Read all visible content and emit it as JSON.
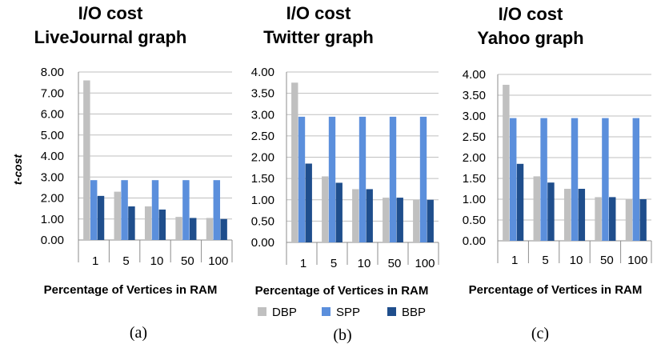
{
  "figure": {
    "legend": [
      {
        "name": "DBP",
        "color": "#c0c0c0"
      },
      {
        "name": "SPP",
        "color": "#5b8fdc"
      },
      {
        "name": "BBP",
        "color": "#1f4e8c"
      }
    ]
  },
  "chart_data": [
    {
      "type": "bar",
      "title_lines": [
        "I/O cost",
        "LiveJournal graph"
      ],
      "caption": "(a)",
      "xlabel": "Percentage of Vertices in RAM",
      "ylabel": "t-cost",
      "categories": [
        "1",
        "5",
        "10",
        "50",
        "100"
      ],
      "ylim": [
        0,
        8
      ],
      "yticks": [
        "0.00",
        "1.00",
        "2.00",
        "3.00",
        "4.00",
        "5.00",
        "6.00",
        "7.00",
        "8.00"
      ],
      "series": [
        {
          "name": "DBP",
          "values": [
            7.6,
            2.3,
            1.6,
            1.1,
            1.05
          ]
        },
        {
          "name": "SPP",
          "values": [
            2.85,
            2.85,
            2.85,
            2.85,
            2.85
          ]
        },
        {
          "name": "BBP",
          "values": [
            2.1,
            1.6,
            1.45,
            1.05,
            1.0
          ]
        }
      ]
    },
    {
      "type": "bar",
      "title_lines": [
        "I/O cost",
        "Twitter graph"
      ],
      "caption": "(b)",
      "xlabel": "Percentage of Vertices in RAM",
      "ylabel": "",
      "categories": [
        "1",
        "5",
        "10",
        "50",
        "100"
      ],
      "ylim": [
        0,
        4
      ],
      "yticks": [
        "0.00",
        "0.50",
        "1.00",
        "1.50",
        "2.00",
        "2.50",
        "3.00",
        "3.50",
        "4.00"
      ],
      "series": [
        {
          "name": "DBP",
          "values": [
            3.75,
            1.55,
            1.25,
            1.05,
            1.0
          ]
        },
        {
          "name": "SPP",
          "values": [
            2.95,
            2.95,
            2.95,
            2.95,
            2.95
          ]
        },
        {
          "name": "BBP",
          "values": [
            1.85,
            1.4,
            1.25,
            1.05,
            1.0
          ]
        }
      ]
    },
    {
      "type": "bar",
      "title_lines": [
        "I/O cost",
        "Yahoo graph"
      ],
      "caption": "(c)",
      "xlabel": "Percentage of Vertices in RAM",
      "ylabel": "",
      "categories": [
        "1",
        "5",
        "10",
        "50",
        "100"
      ],
      "ylim": [
        0,
        4
      ],
      "yticks": [
        "0.00",
        "0.50",
        "1.00",
        "1.50",
        "2.00",
        "2.50",
        "3.00",
        "3.50",
        "4.00"
      ],
      "series": [
        {
          "name": "DBP",
          "values": [
            3.75,
            1.55,
            1.25,
            1.05,
            1.0
          ]
        },
        {
          "name": "SPP",
          "values": [
            2.95,
            2.95,
            2.95,
            2.95,
            2.95
          ]
        },
        {
          "name": "BBP",
          "values": [
            1.85,
            1.4,
            1.25,
            1.05,
            1.0
          ]
        }
      ]
    }
  ]
}
